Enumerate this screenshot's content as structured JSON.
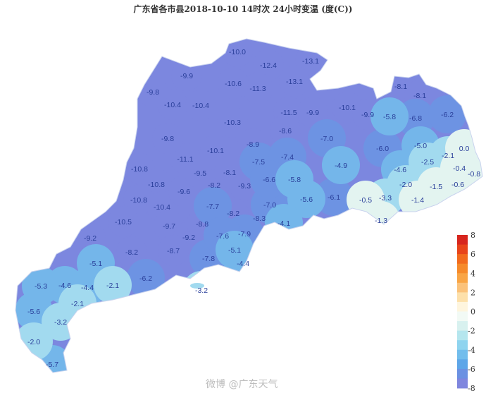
{
  "title": "广东省各市县2018-10-10  14时次  24小时变温 (度(C))",
  "watermark": "微博 @广东天气",
  "colors": {
    "below_-8": "#7c87df",
    "-8_to_-6": "#6d93e3",
    "-6_to_-4": "#74b6ea",
    "-4_to_-2": "#a2daef",
    "-2_to_0": "#e3f4f0",
    "outline": "#c9d3ee"
  },
  "legend": {
    "labels": [
      "8",
      "6",
      "4",
      "2",
      "0",
      "-2",
      "-4",
      "-6",
      "-8"
    ],
    "colors": [
      "#d7261e",
      "#e8441a",
      "#f26b1d",
      "#f68a2a",
      "#f9a545",
      "#fbc27a",
      "#fde0aa",
      "#fef5de",
      "#f2faf5",
      "#d8f1ef",
      "#b5e6ee",
      "#8fd4ef",
      "#72bdec",
      "#5ea6e8",
      "#6b91e2",
      "#7f86de"
    ]
  },
  "values": [
    "-10.0",
    "-12.4",
    "-13.1",
    "-9.9",
    "-9.8",
    "-10.6",
    "-11.3",
    "-13.1",
    "-10.4",
    "-10.4",
    "-11.5",
    "-9.9",
    "-10.1",
    "-9.9",
    "-10.3",
    "-8.6",
    "-7.0",
    "-9.8",
    "-8.9",
    "-10.1",
    "-11.1",
    "-7.5",
    "-7.4",
    "-10.8",
    "-9.5",
    "-8.1",
    "-6.6",
    "-5.8",
    "-4.9",
    "-10.8",
    "-9.6",
    "-8.2",
    "-9.3",
    "-10.8",
    "-10.4",
    "-7.7",
    "-7.0",
    "-5.6",
    "-6.1",
    "-10.5",
    "-9.7",
    "-8.8",
    "-8.2",
    "-8.3",
    "-4.1",
    "-9.2",
    "-9.2",
    "-7.6",
    "-7.9",
    "-8.2",
    "-8.7",
    "-7.8",
    "-5.1",
    "-4.4",
    "-5.1",
    "-6.2",
    "-3.2",
    "-2.1",
    "-4.4",
    "-4.6",
    "-5.3",
    "-2.1",
    "-3.2",
    "-5.6",
    "-2.0",
    "-5.7",
    "-8.1",
    "-8.1",
    "-5.8",
    "-6.8",
    "-6.2",
    "-6.0",
    "-5.0",
    "-2.1",
    "0.0",
    "-4.6",
    "-2.5",
    "-0.4",
    "-0.8",
    "-2.0",
    "-1.5",
    "-0.6",
    "-0.5",
    "-3.3",
    "-1.4",
    "-1.3"
  ]
}
